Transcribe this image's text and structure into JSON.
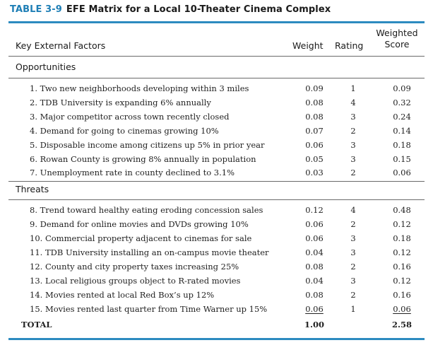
{
  "table": {
    "number": "TABLE 3-9",
    "title": "EFE Matrix for a Local 10-Theater Cinema Complex"
  },
  "headers": {
    "factors": "Key External Factors",
    "weight": "Weight",
    "rating": "Rating",
    "weighted_line1": "Weighted",
    "weighted_line2": "Score"
  },
  "opportunities": {
    "label": "Opportunities",
    "rows": [
      {
        "factor": "1. Two new neighborhoods developing within 3 miles",
        "weight": "0.09",
        "rating": "1",
        "score": "0.09"
      },
      {
        "factor": "2. TDB University is expanding 6% annually",
        "weight": "0.08",
        "rating": "4",
        "score": "0.32"
      },
      {
        "factor": "3. Major competitor across town recently closed",
        "weight": "0.08",
        "rating": "3",
        "score": "0.24"
      },
      {
        "factor": "4. Demand for going to cinemas growing 10%",
        "weight": "0.07",
        "rating": "2",
        "score": "0.14"
      },
      {
        "factor": "5. Disposable income among citizens up 5% in prior year",
        "weight": "0.06",
        "rating": "3",
        "score": "0.18"
      },
      {
        "factor": "6. Rowan County is growing 8% annually in population",
        "weight": "0.05",
        "rating": "3",
        "score": "0.15"
      },
      {
        "factor": "7. Unemployment rate in county declined to 3.1%",
        "weight": "0.03",
        "rating": "2",
        "score": "0.06"
      }
    ]
  },
  "threats": {
    "label": "Threats",
    "rows": [
      {
        "factor": "8. Trend toward healthy eating eroding concession sales",
        "weight": "0.12",
        "rating": "4",
        "score": "0.48"
      },
      {
        "factor": "9. Demand for online movies and DVDs growing 10%",
        "weight": "0.06",
        "rating": "2",
        "score": "0.12"
      },
      {
        "factor": "10. Commercial property adjacent to cinemas for sale",
        "weight": "0.06",
        "rating": "3",
        "score": "0.18"
      },
      {
        "factor": "11. TDB University installing an on-campus movie theater",
        "weight": "0.04",
        "rating": "3",
        "score": "0.12"
      },
      {
        "factor": "12. County and city property taxes increasing 25%",
        "weight": "0.08",
        "rating": "2",
        "score": "0.16"
      },
      {
        "factor": "13. Local religious groups object to R-rated movies",
        "weight": "0.04",
        "rating": "3",
        "score": "0.12"
      },
      {
        "factor": "14. Movies rented at local Red Box’s up 12%",
        "weight": "0.08",
        "rating": "2",
        "score": "0.16"
      },
      {
        "factor": "15. Movies rented last quarter from Time Warner up 15%",
        "weight": "0.06",
        "rating": "1",
        "score": "0.06"
      }
    ]
  },
  "total": {
    "label": "TOTAL",
    "weight": "1.00",
    "score": "2.58"
  }
}
